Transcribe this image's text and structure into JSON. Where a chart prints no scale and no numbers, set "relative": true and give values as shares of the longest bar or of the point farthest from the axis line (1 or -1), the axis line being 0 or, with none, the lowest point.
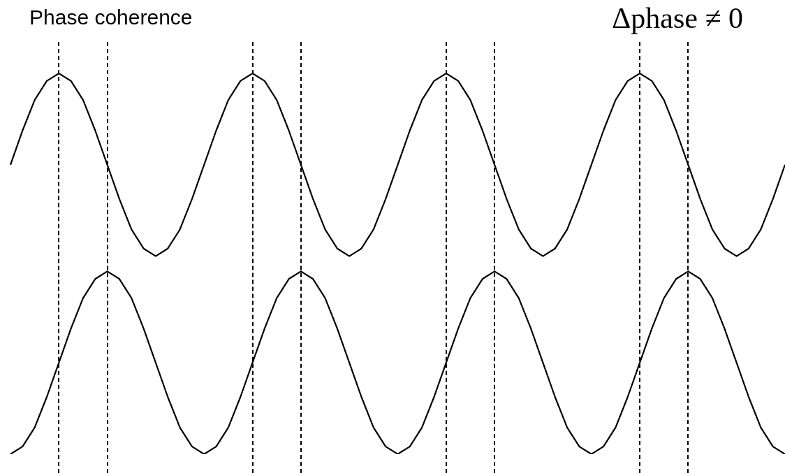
{
  "chart_data": {
    "type": "line",
    "title": "Phase coherence",
    "annotations": [
      "Δphase ≠ 0"
    ],
    "relative": true,
    "legend": false,
    "grid": "x",
    "marker": "none",
    "line_style": "solid",
    "categories": [
      null,
      null,
      null,
      null,
      null,
      null,
      null,
      null,
      null,
      null,
      null,
      null,
      null,
      null,
      null,
      null,
      null,
      null,
      null,
      null,
      null,
      null,
      null,
      null,
      null,
      null,
      null,
      null,
      null,
      null,
      null,
      null,
      null,
      null,
      null,
      null,
      null,
      null,
      null,
      null,
      null,
      null,
      null,
      null,
      null,
      null,
      null,
      null,
      null,
      null,
      null,
      null,
      null,
      null,
      null,
      null,
      null,
      null,
      null,
      null,
      null,
      null,
      null,
      null,
      null
    ],
    "series": [
      {
        "color": "#000000",
        "values": [
          0.76,
          0.85,
          0.93,
          0.98,
          1,
          0.98,
          0.93,
          0.85,
          0.76,
          0.67,
          0.59,
          0.54,
          0.52,
          0.54,
          0.59,
          0.67,
          0.76,
          0.85,
          0.93,
          0.98,
          1,
          0.98,
          0.93,
          0.85,
          0.76,
          0.67,
          0.59,
          0.54,
          0.52,
          0.54,
          0.59,
          0.67,
          0.76,
          0.85,
          0.93,
          0.98,
          1,
          0.98,
          0.93,
          0.85,
          0.76,
          0.67,
          0.59,
          0.54,
          0.52,
          0.54,
          0.59,
          0.67,
          0.76,
          0.85,
          0.93,
          0.98,
          1,
          0.98,
          0.93,
          0.85,
          0.76,
          0.67,
          0.59,
          0.54,
          0.52,
          0.54,
          0.59,
          0.67,
          0.76
        ]
      },
      {
        "color": "#000000",
        "values": [
          0,
          0.02,
          0.07,
          0.15,
          0.24,
          0.33,
          0.41,
          0.46,
          0.48,
          0.46,
          0.41,
          0.33,
          0.24,
          0.15,
          0.07,
          0.02,
          0,
          0.02,
          0.07,
          0.15,
          0.24,
          0.33,
          0.41,
          0.46,
          0.48,
          0.46,
          0.41,
          0.33,
          0.24,
          0.15,
          0.07,
          0.02,
          0,
          0.02,
          0.07,
          0.15,
          0.24,
          0.33,
          0.41,
          0.46,
          0.48,
          0.46,
          0.41,
          0.33,
          0.24,
          0.15,
          0.07,
          0.02,
          0,
          0.02,
          0.07,
          0.15,
          0.24,
          0.33,
          0.41,
          0.46,
          0.48,
          0.46,
          0.41,
          0.33,
          0.24,
          0.15,
          0.07,
          0.02,
          0
        ]
      }
    ]
  }
}
